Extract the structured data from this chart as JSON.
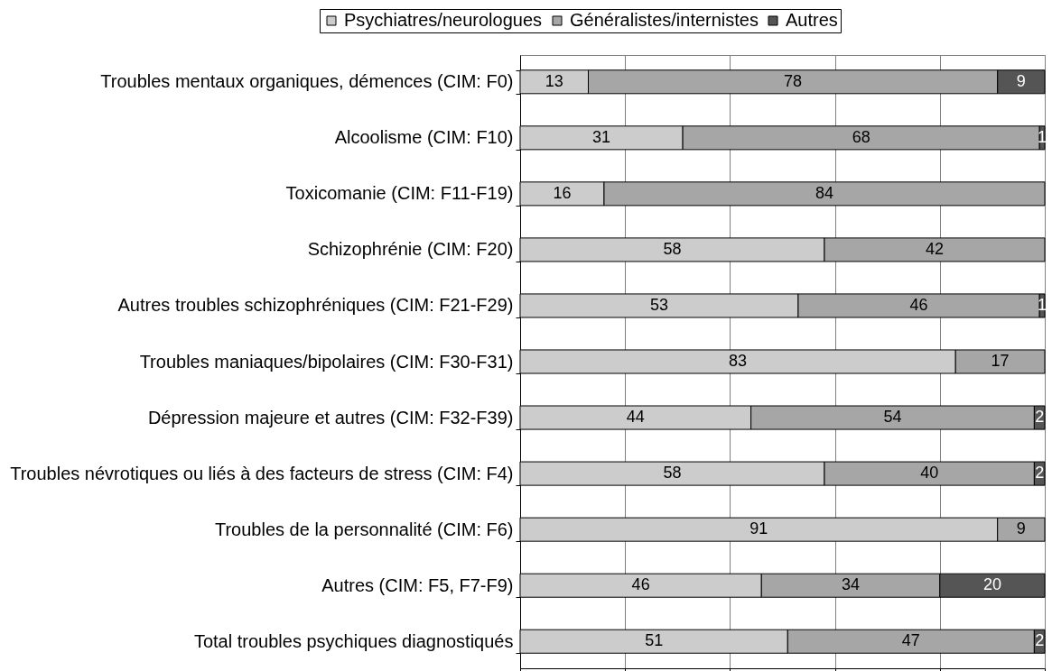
{
  "chart_data": {
    "type": "bar",
    "orientation": "horizontal",
    "stacked": true,
    "categories": [
      "Troubles mentaux organiques, démences (CIM: F0)",
      "Alcoolisme (CIM: F10)",
      "Toxicomanie (CIM: F11-F19)",
      "Schizophrénie (CIM: F20)",
      "Autres troubles schizophréniques (CIM: F21-F29)",
      "Troubles maniaques/bipolaires (CIM: F30-F31)",
      "Dépression majeure et autres (CIM: F32-F39)",
      "Troubles névrotiques ou liés à des facteurs de stress (CIM: F4)",
      "Troubles de la personnalité (CIM: F6)",
      "Autres (CIM: F5, F7-F9)",
      "Total troubles psychiques diagnostiqués"
    ],
    "series": [
      {
        "name": "Psychiatres/neurologues",
        "color": "#cccccc",
        "values": [
          13,
          31,
          16,
          58,
          53,
          83,
          44,
          58,
          91,
          46,
          51
        ]
      },
      {
        "name": "Généralistes/internistes",
        "color": "#a6a6a6",
        "values": [
          78,
          68,
          84,
          42,
          46,
          17,
          54,
          40,
          9,
          34,
          47
        ]
      },
      {
        "name": "Autres",
        "color": "#555555",
        "values": [
          9,
          1,
          null,
          null,
          1,
          null,
          2,
          2,
          null,
          20,
          2
        ]
      }
    ],
    "xlim": [
      0,
      100
    ],
    "xticks": [
      {
        "value": 0,
        "label": null
      },
      {
        "value": 20,
        "label": null
      },
      {
        "value": 40,
        "label": null
      },
      {
        "value": 60,
        "label": null
      },
      {
        "value": 80,
        "label": null
      },
      {
        "value": 100,
        "label": null
      }
    ],
    "grid": "x",
    "legend": "top",
    "tick_labels": "y",
    "data_labels": true
  }
}
